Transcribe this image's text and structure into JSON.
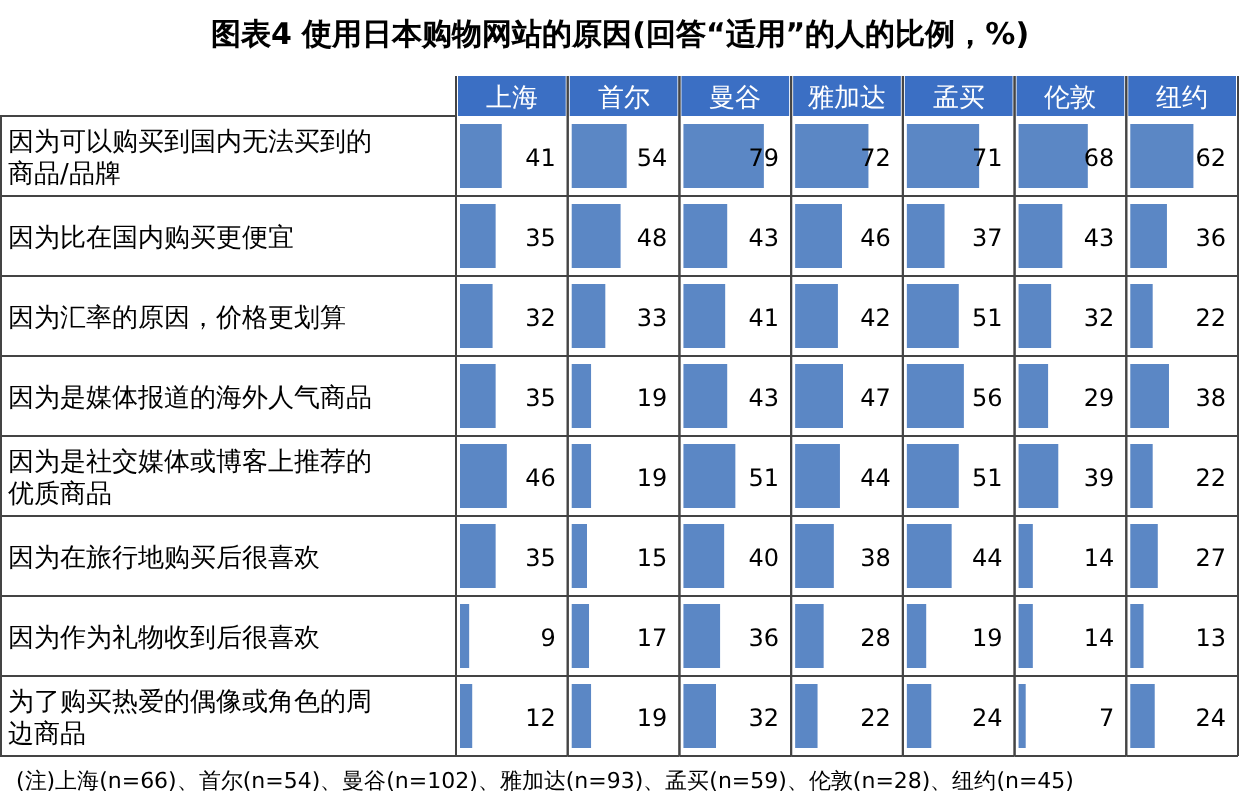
{
  "chart_data": [
    {
      "type": "bar",
      "orientation": "horizontal",
      "title": "图表4  使用日本购物网站的原因(回答“适用”的人的比例，%)",
      "subtitle": "上海",
      "categories": [
        "因为可以购买到国内无法买到的商品/品牌",
        "因为比在国内购买更便宜",
        "因为汇率的原因，价格更划算",
        "因为是媒体报道的海外人气商品",
        "因为是社交媒体或博客上推荐的优质商品",
        "因为在旅行地购买后很喜欢",
        "因为作为礼物收到后很喜欢",
        "为了购买热爱的偶像或角色的周边商品"
      ],
      "values": [
        41,
        35,
        32,
        35,
        46,
        35,
        9,
        12
      ],
      "color": "#5b87c5",
      "data_labels": true,
      "tick_labels": "y",
      "annotations": [
        "(注)上海(n=66)、首尔(n=54)、曼谷(n=102)、雅加达(n=93)、孟买(n=59)、伦敦(n=28)、纽约(n=45)"
      ]
    },
    {
      "type": "bar",
      "orientation": "horizontal",
      "subtitle": "首尔",
      "categories": [
        "因为可以购买到国内无法买到的商品/品牌",
        "因为比在国内购买更便宜",
        "因为汇率的原因，价格更划算",
        "因为是媒体报道的海外人气商品",
        "因为是社交媒体或博客上推荐的优质商品",
        "因为在旅行地购买后很喜欢",
        "因为作为礼物收到后很喜欢",
        "为了购买热爱的偶像或角色的周边商品"
      ],
      "values": [
        54,
        48,
        33,
        19,
        19,
        15,
        17,
        19
      ],
      "color": "#5b87c5",
      "data_labels": true,
      "tick_labels": false
    },
    {
      "type": "bar",
      "orientation": "horizontal",
      "subtitle": "曼谷",
      "categories": [
        "因为可以购买到国内无法买到的商品/品牌",
        "因为比在国内购买更便宜",
        "因为汇率的原因，价格更划算",
        "因为是媒体报道的海外人气商品",
        "因为是社交媒体或博客上推荐的优质商品",
        "因为在旅行地购买后很喜欢",
        "因为作为礼物收到后很喜欢",
        "为了购买热爱的偶像或角色的周边商品"
      ],
      "values": [
        79,
        43,
        41,
        43,
        51,
        40,
        36,
        32
      ],
      "color": "#5b87c5",
      "data_labels": true,
      "tick_labels": false
    },
    {
      "type": "bar",
      "orientation": "horizontal",
      "subtitle": "雅加达",
      "categories": [
        "因为可以购买到国内无法买到的商品/品牌",
        "因为比在国内购买更便宜",
        "因为汇率的原因，价格更划算",
        "因为是媒体报道的海外人气商品",
        "因为是社交媒体或博客上推荐的优质商品",
        "因为在旅行地购买后很喜欢",
        "因为作为礼物收到后很喜欢",
        "为了购买热爱的偶像或角色的周边商品"
      ],
      "values": [
        72,
        46,
        42,
        47,
        44,
        38,
        28,
        22
      ],
      "color": "#5b87c5",
      "data_labels": true,
      "tick_labels": false
    },
    {
      "type": "bar",
      "orientation": "horizontal",
      "subtitle": "孟买",
      "categories": [
        "因为可以购买到国内无法买到的商品/品牌",
        "因为比在国内购买更便宜",
        "因为汇率的原因，价格更划算",
        "因为是媒体报道的海外人气商品",
        "因为是社交媒体或博客上推荐的优质商品",
        "因为在旅行地购买后很喜欢",
        "因为作为礼物收到后很喜欢",
        "为了购买热爱的偶像或角色的周边商品"
      ],
      "values": [
        71,
        37,
        51,
        56,
        51,
        44,
        19,
        24
      ],
      "color": "#5b87c5",
      "data_labels": true,
      "tick_labels": false
    },
    {
      "type": "bar",
      "orientation": "horizontal",
      "subtitle": "伦敦",
      "categories": [
        "因为可以购买到国内无法买到的商品/品牌",
        "因为比在国内购买更便宜",
        "因为汇率的原因，价格更划算",
        "因为是媒体报道的海外人气商品",
        "因为是社交媒体或博客上推荐的优质商品",
        "因为在旅行地购买后很喜欢",
        "因为作为礼物收到后很喜欢",
        "为了购买热爱的偶像或角色的周边商品"
      ],
      "values": [
        68,
        43,
        32,
        29,
        39,
        14,
        14,
        7
      ],
      "color": "#5b87c5",
      "data_labels": true,
      "tick_labels": false
    },
    {
      "type": "bar",
      "orientation": "horizontal",
      "subtitle": "纽约",
      "categories": [
        "因为可以购买到国内无法买到的商品/品牌",
        "因为比在国内购买更便宜",
        "因为汇率的原因，价格更划算",
        "因为是媒体报道的海外人气商品",
        "因为是社交媒体或博客上推荐的优质商品",
        "因为在旅行地购买后很喜欢",
        "因为作为礼物收到后很喜欢",
        "为了购买热爱的偶像或角色的周边商品"
      ],
      "values": [
        62,
        36,
        22,
        38,
        22,
        27,
        13,
        24
      ],
      "color": "#5b87c5",
      "data_labels": true,
      "tick_labels": false
    }
  ]
}
